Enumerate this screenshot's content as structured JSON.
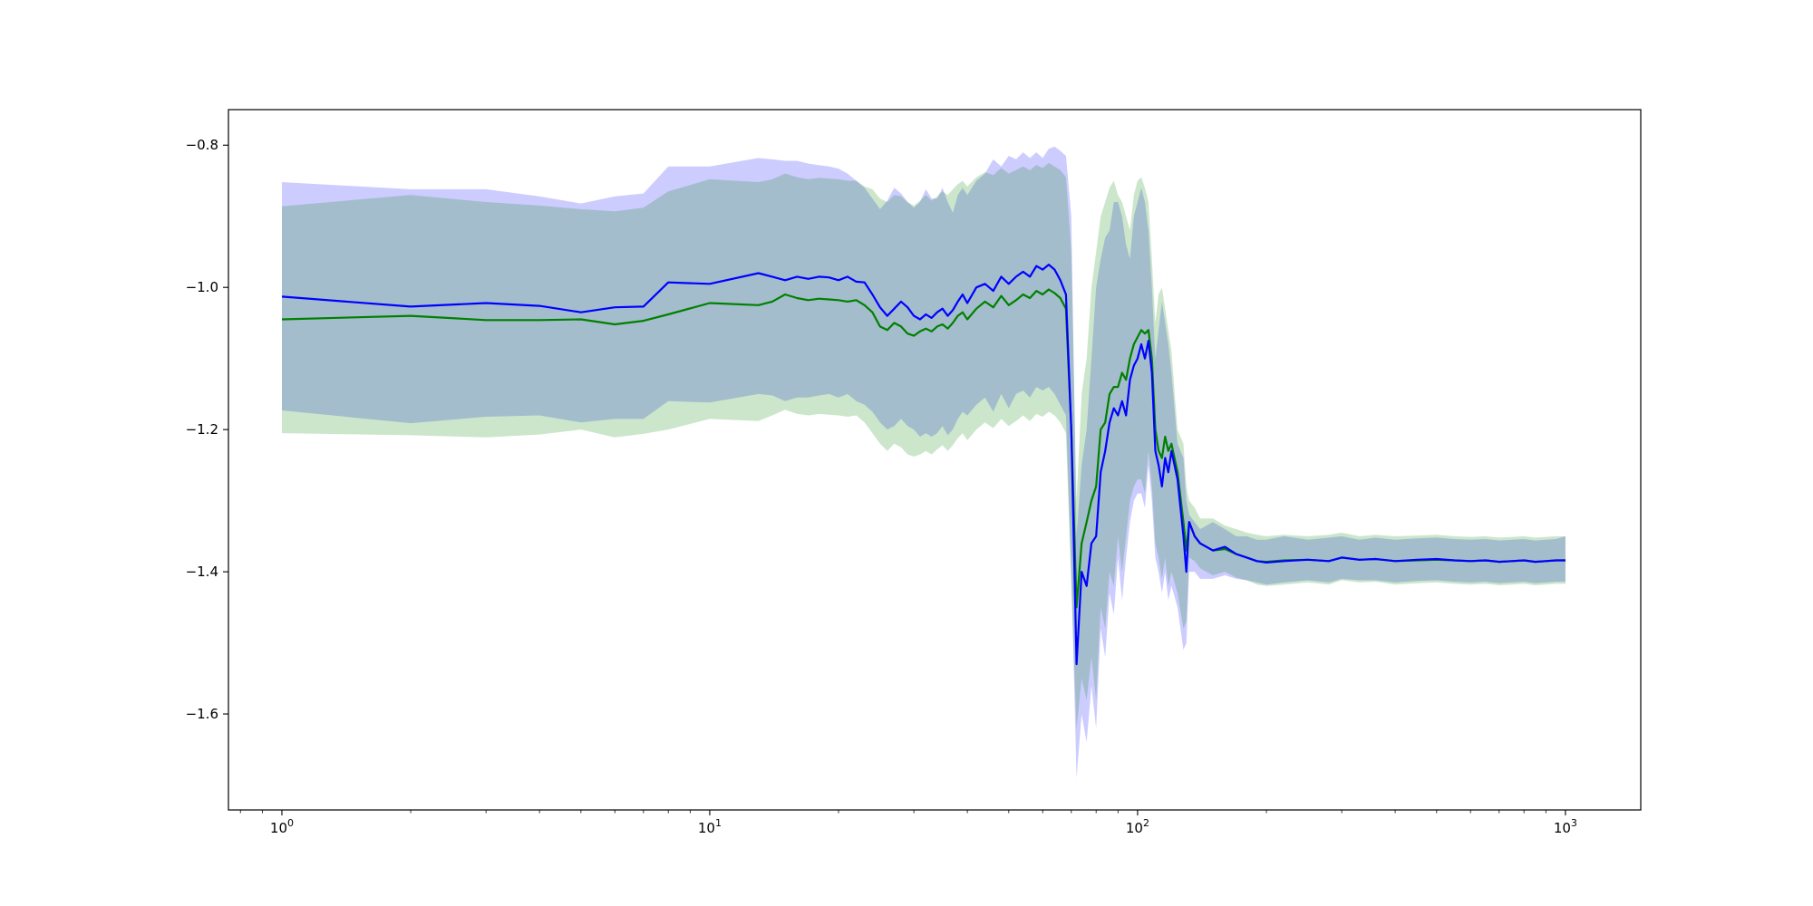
{
  "chart_data": {
    "type": "line",
    "title": "",
    "xlabel": "",
    "ylabel": "",
    "xscale": "log",
    "xlim": [
      0.75,
      1500
    ],
    "ylim": [
      -1.735,
      -0.75
    ],
    "grid": false,
    "x_ticks": [
      {
        "value": 1,
        "base": "10",
        "exp": "0"
      },
      {
        "value": 10,
        "base": "10",
        "exp": "1"
      },
      {
        "value": 100,
        "base": "10",
        "exp": "2"
      },
      {
        "value": 1000,
        "base": "10",
        "exp": "3"
      }
    ],
    "y_ticks": [
      {
        "value": -0.8,
        "label": "−0.8"
      },
      {
        "value": -1.0,
        "label": "−1.0"
      },
      {
        "value": -1.2,
        "label": "−1.2"
      },
      {
        "value": -1.4,
        "label": "−1.4"
      },
      {
        "value": -1.6,
        "label": "−1.6"
      }
    ],
    "series": [
      {
        "color": "#0000ff",
        "band_color": "#0000ff",
        "band_opacity": 0.2,
        "x": [
          1,
          2,
          3,
          4,
          5,
          6,
          7,
          8,
          10,
          13,
          14,
          15,
          16,
          17,
          18,
          19,
          20,
          21,
          22,
          23,
          24,
          25,
          26,
          27,
          28,
          29,
          30,
          31,
          32,
          33,
          34,
          35,
          36,
          37,
          38,
          39,
          40,
          42,
          44,
          46,
          48,
          50,
          52,
          54,
          56,
          58,
          60,
          62,
          64,
          66,
          68,
          70,
          72,
          74,
          76,
          78,
          80,
          82,
          84,
          86,
          88,
          90,
          92,
          94,
          96,
          98,
          100,
          102,
          104,
          106,
          108,
          110,
          112,
          114,
          116,
          118,
          120,
          124,
          128,
          130,
          132,
          136,
          140,
          150,
          160,
          170,
          180,
          190,
          200,
          220,
          250,
          280,
          300,
          330,
          360,
          400,
          450,
          500,
          550,
          600,
          650,
          700,
          750,
          800,
          850,
          900,
          950,
          1000
        ],
        "y": [
          -1.013,
          -1.027,
          -1.022,
          -1.026,
          -1.035,
          -1.028,
          -1.027,
          -0.993,
          -0.995,
          -0.98,
          -0.985,
          -0.99,
          -0.985,
          -0.988,
          -0.985,
          -0.986,
          -0.99,
          -0.985,
          -0.992,
          -0.993,
          -1.01,
          -1.028,
          -1.04,
          -1.03,
          -1.02,
          -1.028,
          -1.04,
          -1.045,
          -1.038,
          -1.043,
          -1.035,
          -1.03,
          -1.04,
          -1.032,
          -1.02,
          -1.01,
          -1.022,
          -1.0,
          -0.995,
          -1.005,
          -0.985,
          -0.995,
          -0.985,
          -0.978,
          -0.985,
          -0.97,
          -0.975,
          -0.968,
          -0.975,
          -0.99,
          -1.01,
          -1.2,
          -1.53,
          -1.4,
          -1.42,
          -1.36,
          -1.35,
          -1.26,
          -1.23,
          -1.19,
          -1.17,
          -1.18,
          -1.16,
          -1.18,
          -1.13,
          -1.11,
          -1.1,
          -1.08,
          -1.1,
          -1.075,
          -1.12,
          -1.23,
          -1.25,
          -1.28,
          -1.24,
          -1.26,
          -1.23,
          -1.27,
          -1.35,
          -1.4,
          -1.33,
          -1.35,
          -1.36,
          -1.37,
          -1.365,
          -1.375,
          -1.38,
          -1.385,
          -1.387,
          -1.385,
          -1.383,
          -1.385,
          -1.38,
          -1.383,
          -1.382,
          -1.385,
          -1.383,
          -1.382,
          -1.384,
          -1.385,
          -1.384,
          -1.386,
          -1.385,
          -1.384,
          -1.386,
          -1.385,
          -1.384,
          -1.384
        ],
        "upper": [
          -0.852,
          -0.862,
          -0.862,
          -0.872,
          -0.882,
          -0.872,
          -0.868,
          -0.83,
          -0.83,
          -0.818,
          -0.82,
          -0.822,
          -0.822,
          -0.826,
          -0.828,
          -0.83,
          -0.833,
          -0.84,
          -0.85,
          -0.86,
          -0.875,
          -0.89,
          -0.878,
          -0.86,
          -0.868,
          -0.88,
          -0.888,
          -0.88,
          -0.862,
          -0.875,
          -0.875,
          -0.86,
          -0.88,
          -0.895,
          -0.87,
          -0.86,
          -0.87,
          -0.85,
          -0.84,
          -0.82,
          -0.83,
          -0.815,
          -0.82,
          -0.81,
          -0.818,
          -0.81,
          -0.818,
          -0.805,
          -0.802,
          -0.808,
          -0.815,
          -0.9,
          -1.35,
          -1.25,
          -1.2,
          -1.1,
          -1.0,
          -0.96,
          -0.93,
          -0.92,
          -0.88,
          -0.88,
          -0.9,
          -0.94,
          -0.96,
          -0.9,
          -0.88,
          -0.86,
          -0.88,
          -0.92,
          -1.0,
          -1.1,
          -1.06,
          -1.02,
          -1.05,
          -1.08,
          -1.12,
          -1.22,
          -1.24,
          -1.3,
          -1.32,
          -1.33,
          -1.34,
          -1.33,
          -1.34,
          -1.35,
          -1.35,
          -1.355,
          -1.355,
          -1.35,
          -1.355,
          -1.352,
          -1.35,
          -1.355,
          -1.352,
          -1.355,
          -1.353,
          -1.352,
          -1.354,
          -1.355,
          -1.354,
          -1.356,
          -1.355,
          -1.354,
          -1.356,
          -1.355,
          -1.354,
          -1.35
        ],
        "lower": [
          -1.173,
          -1.191,
          -1.182,
          -1.18,
          -1.19,
          -1.185,
          -1.185,
          -1.16,
          -1.162,
          -1.15,
          -1.152,
          -1.16,
          -1.155,
          -1.155,
          -1.152,
          -1.15,
          -1.155,
          -1.15,
          -1.16,
          -1.165,
          -1.175,
          -1.19,
          -1.2,
          -1.195,
          -1.185,
          -1.195,
          -1.2,
          -1.21,
          -1.205,
          -1.21,
          -1.205,
          -1.195,
          -1.208,
          -1.2,
          -1.185,
          -1.175,
          -1.18,
          -1.165,
          -1.155,
          -1.175,
          -1.15,
          -1.17,
          -1.15,
          -1.145,
          -1.155,
          -1.14,
          -1.145,
          -1.14,
          -1.15,
          -1.165,
          -1.18,
          -1.4,
          -1.69,
          -1.6,
          -1.64,
          -1.56,
          -1.62,
          -1.48,
          -1.52,
          -1.43,
          -1.46,
          -1.38,
          -1.44,
          -1.38,
          -1.33,
          -1.3,
          -1.29,
          -1.29,
          -1.31,
          -1.25,
          -1.3,
          -1.38,
          -1.4,
          -1.43,
          -1.4,
          -1.44,
          -1.42,
          -1.45,
          -1.51,
          -1.5,
          -1.4,
          -1.4,
          -1.41,
          -1.41,
          -1.405,
          -1.41,
          -1.412,
          -1.415,
          -1.418,
          -1.415,
          -1.412,
          -1.415,
          -1.41,
          -1.412,
          -1.412,
          -1.415,
          -1.413,
          -1.412,
          -1.414,
          -1.415,
          -1.414,
          -1.416,
          -1.415,
          -1.414,
          -1.416,
          -1.415,
          -1.414,
          -1.414
        ]
      },
      {
        "color": "#008000",
        "band_color": "#008000",
        "band_opacity": 0.2,
        "x": [
          1,
          2,
          3,
          4,
          5,
          6,
          7,
          8,
          10,
          13,
          14,
          15,
          16,
          17,
          18,
          19,
          20,
          21,
          22,
          23,
          24,
          25,
          26,
          27,
          28,
          29,
          30,
          31,
          32,
          33,
          34,
          35,
          36,
          37,
          38,
          39,
          40,
          42,
          44,
          46,
          48,
          50,
          52,
          54,
          56,
          58,
          60,
          62,
          64,
          66,
          68,
          70,
          72,
          74,
          76,
          78,
          80,
          82,
          84,
          86,
          88,
          90,
          92,
          94,
          96,
          98,
          100,
          102,
          104,
          106,
          108,
          110,
          112,
          114,
          116,
          118,
          120,
          124,
          128,
          130,
          132,
          136,
          140,
          150,
          160,
          170,
          180,
          190,
          200,
          220,
          250,
          280,
          300,
          330,
          360,
          400,
          450,
          500,
          550,
          600,
          650,
          700,
          750,
          800,
          850,
          900,
          950,
          1000
        ],
        "y": [
          -1.045,
          -1.04,
          -1.046,
          -1.046,
          -1.045,
          -1.052,
          -1.047,
          -1.038,
          -1.022,
          -1.025,
          -1.02,
          -1.01,
          -1.015,
          -1.018,
          -1.016,
          -1.017,
          -1.018,
          -1.02,
          -1.018,
          -1.025,
          -1.035,
          -1.055,
          -1.06,
          -1.05,
          -1.055,
          -1.065,
          -1.068,
          -1.062,
          -1.058,
          -1.062,
          -1.055,
          -1.052,
          -1.058,
          -1.05,
          -1.04,
          -1.035,
          -1.045,
          -1.03,
          -1.02,
          -1.028,
          -1.012,
          -1.025,
          -1.018,
          -1.01,
          -1.015,
          -1.005,
          -1.01,
          -1.003,
          -1.008,
          -1.015,
          -1.03,
          -1.2,
          -1.45,
          -1.36,
          -1.33,
          -1.3,
          -1.28,
          -1.2,
          -1.19,
          -1.15,
          -1.14,
          -1.14,
          -1.12,
          -1.13,
          -1.1,
          -1.08,
          -1.07,
          -1.06,
          -1.065,
          -1.06,
          -1.1,
          -1.2,
          -1.23,
          -1.24,
          -1.21,
          -1.23,
          -1.22,
          -1.26,
          -1.33,
          -1.37,
          -1.33,
          -1.35,
          -1.36,
          -1.37,
          -1.368,
          -1.375,
          -1.38,
          -1.385,
          -1.386,
          -1.384,
          -1.383,
          -1.385,
          -1.38,
          -1.383,
          -1.382,
          -1.385,
          -1.384,
          -1.383,
          -1.384,
          -1.385,
          -1.384,
          -1.386,
          -1.385,
          -1.384,
          -1.386,
          -1.385,
          -1.384,
          -1.384
        ],
        "upper": [
          -0.886,
          -0.87,
          -0.88,
          -0.885,
          -0.89,
          -0.893,
          -0.888,
          -0.865,
          -0.848,
          -0.852,
          -0.848,
          -0.84,
          -0.845,
          -0.848,
          -0.846,
          -0.847,
          -0.848,
          -0.85,
          -0.85,
          -0.858,
          -0.862,
          -0.875,
          -0.88,
          -0.87,
          -0.872,
          -0.88,
          -0.885,
          -0.878,
          -0.87,
          -0.878,
          -0.872,
          -0.865,
          -0.87,
          -0.862,
          -0.855,
          -0.85,
          -0.858,
          -0.845,
          -0.838,
          -0.842,
          -0.832,
          -0.84,
          -0.835,
          -0.83,
          -0.835,
          -0.828,
          -0.832,
          -0.825,
          -0.83,
          -0.835,
          -0.845,
          -0.95,
          -1.3,
          -1.15,
          -1.1,
          -1.0,
          -0.95,
          -0.9,
          -0.88,
          -0.86,
          -0.85,
          -0.87,
          -0.88,
          -0.9,
          -0.92,
          -0.87,
          -0.85,
          -0.845,
          -0.86,
          -0.88,
          -0.96,
          -1.05,
          -1.01,
          -1.0,
          -1.03,
          -1.06,
          -1.09,
          -1.2,
          -1.22,
          -1.28,
          -1.3,
          -1.31,
          -1.325,
          -1.325,
          -1.335,
          -1.34,
          -1.345,
          -1.348,
          -1.35,
          -1.348,
          -1.35,
          -1.348,
          -1.345,
          -1.35,
          -1.348,
          -1.35,
          -1.349,
          -1.348,
          -1.35,
          -1.351,
          -1.35,
          -1.352,
          -1.351,
          -1.35,
          -1.352,
          -1.351,
          -1.35,
          -1.35
        ],
        "lower": [
          -1.205,
          -1.208,
          -1.211,
          -1.207,
          -1.2,
          -1.211,
          -1.206,
          -1.2,
          -1.185,
          -1.188,
          -1.18,
          -1.172,
          -1.178,
          -1.18,
          -1.178,
          -1.179,
          -1.18,
          -1.182,
          -1.18,
          -1.19,
          -1.205,
          -1.22,
          -1.23,
          -1.22,
          -1.225,
          -1.235,
          -1.238,
          -1.235,
          -1.23,
          -1.235,
          -1.228,
          -1.222,
          -1.23,
          -1.222,
          -1.212,
          -1.205,
          -1.215,
          -1.2,
          -1.19,
          -1.198,
          -1.185,
          -1.195,
          -1.188,
          -1.18,
          -1.188,
          -1.178,
          -1.182,
          -1.175,
          -1.18,
          -1.19,
          -1.205,
          -1.42,
          -1.62,
          -1.55,
          -1.58,
          -1.52,
          -1.58,
          -1.45,
          -1.48,
          -1.4,
          -1.42,
          -1.35,
          -1.4,
          -1.35,
          -1.3,
          -1.28,
          -1.27,
          -1.27,
          -1.29,
          -1.23,
          -1.28,
          -1.36,
          -1.38,
          -1.41,
          -1.38,
          -1.42,
          -1.4,
          -1.43,
          -1.48,
          -1.47,
          -1.38,
          -1.385,
          -1.395,
          -1.405,
          -1.4,
          -1.408,
          -1.412,
          -1.418,
          -1.42,
          -1.418,
          -1.415,
          -1.418,
          -1.412,
          -1.415,
          -1.414,
          -1.418,
          -1.416,
          -1.415,
          -1.417,
          -1.418,
          -1.417,
          -1.419,
          -1.418,
          -1.417,
          -1.419,
          -1.418,
          -1.417,
          -1.417
        ]
      }
    ]
  }
}
